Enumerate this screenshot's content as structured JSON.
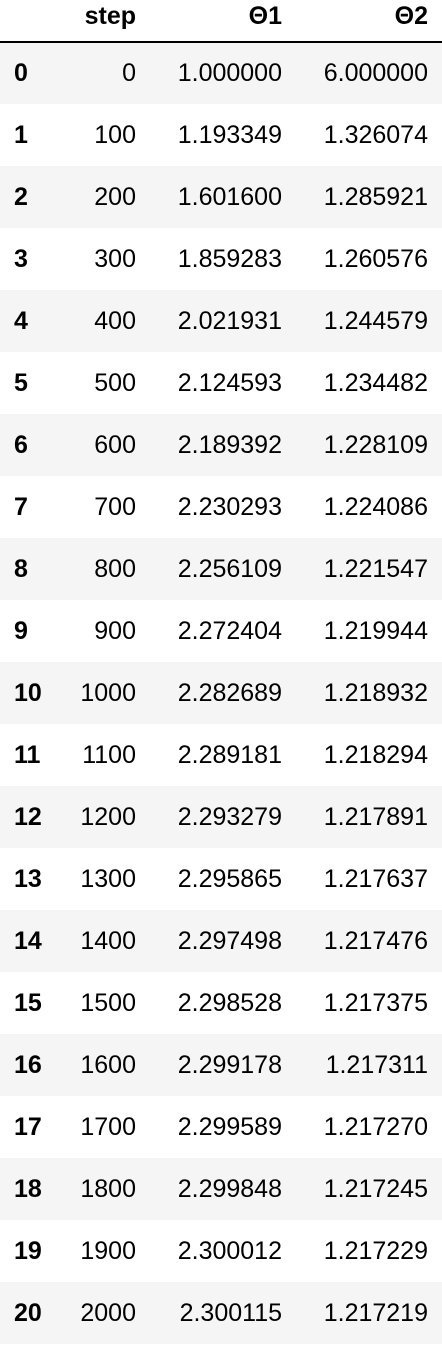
{
  "table": {
    "columns": [
      "",
      "step",
      "Θ1",
      "Θ2"
    ],
    "rows": [
      {
        "index": "0",
        "step": "0",
        "theta1": "1.000000",
        "theta2": "6.000000"
      },
      {
        "index": "1",
        "step": "100",
        "theta1": "1.193349",
        "theta2": "1.326074"
      },
      {
        "index": "2",
        "step": "200",
        "theta1": "1.601600",
        "theta2": "1.285921"
      },
      {
        "index": "3",
        "step": "300",
        "theta1": "1.859283",
        "theta2": "1.260576"
      },
      {
        "index": "4",
        "step": "400",
        "theta1": "2.021931",
        "theta2": "1.244579"
      },
      {
        "index": "5",
        "step": "500",
        "theta1": "2.124593",
        "theta2": "1.234482"
      },
      {
        "index": "6",
        "step": "600",
        "theta1": "2.189392",
        "theta2": "1.228109"
      },
      {
        "index": "7",
        "step": "700",
        "theta1": "2.230293",
        "theta2": "1.224086"
      },
      {
        "index": "8",
        "step": "800",
        "theta1": "2.256109",
        "theta2": "1.221547"
      },
      {
        "index": "9",
        "step": "900",
        "theta1": "2.272404",
        "theta2": "1.219944"
      },
      {
        "index": "10",
        "step": "1000",
        "theta1": "2.282689",
        "theta2": "1.218932"
      },
      {
        "index": "11",
        "step": "1100",
        "theta1": "2.289181",
        "theta2": "1.218294"
      },
      {
        "index": "12",
        "step": "1200",
        "theta1": "2.293279",
        "theta2": "1.217891"
      },
      {
        "index": "13",
        "step": "1300",
        "theta1": "2.295865",
        "theta2": "1.217637"
      },
      {
        "index": "14",
        "step": "1400",
        "theta1": "2.297498",
        "theta2": "1.217476"
      },
      {
        "index": "15",
        "step": "1500",
        "theta1": "2.298528",
        "theta2": "1.217375"
      },
      {
        "index": "16",
        "step": "1600",
        "theta1": "2.299178",
        "theta2": "1.217311"
      },
      {
        "index": "17",
        "step": "1700",
        "theta1": "2.299589",
        "theta2": "1.217270"
      },
      {
        "index": "18",
        "step": "1800",
        "theta1": "2.299848",
        "theta2": "1.217245"
      },
      {
        "index": "19",
        "step": "1900",
        "theta1": "2.300012",
        "theta2": "1.217229"
      },
      {
        "index": "20",
        "step": "2000",
        "theta1": "2.300115",
        "theta2": "1.217219"
      }
    ]
  }
}
